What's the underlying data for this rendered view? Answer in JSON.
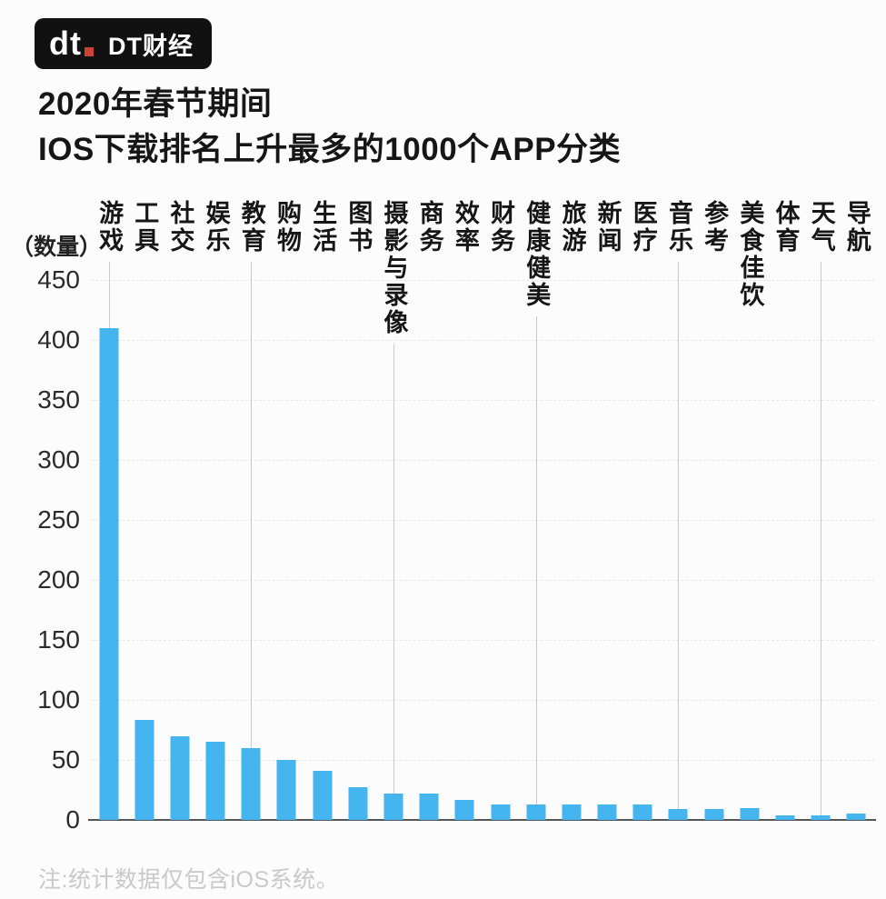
{
  "logo": {
    "mark": "dt",
    "text": "DT财经"
  },
  "title": {
    "line1": "2020年春节期间",
    "line2": "IOS下载排名上升最多的1000个APP分类"
  },
  "footer": {
    "note": "注:统计数据仅包含iOS系统。"
  },
  "colors": {
    "bar": "#45B5F0",
    "logo_bg": "#111111",
    "logo_dot_red": "#CE4338",
    "baseline": "#565656",
    "vertical_gridline": "#c9c9c9",
    "horizontal_gridline": "#e8e8e8",
    "footnote_gray": "#c9c9c9"
  },
  "chart_data": {
    "type": "bar",
    "title": "2020年春节期间IOS下载排名上升最多的1000个APP分类",
    "unit_label": "（数量）",
    "xlabel": "",
    "ylabel": "数量",
    "categories": [
      "游戏",
      "工具",
      "社交",
      "娱乐",
      "教育",
      "购物",
      "生活",
      "图书",
      "摄影与录像",
      "商务",
      "效率",
      "财务",
      "健康健美",
      "旅游",
      "新闻",
      "医疗",
      "音乐",
      "参考",
      "美食佳饮",
      "体育",
      "天气",
      "导航"
    ],
    "values": [
      410,
      83,
      70,
      65,
      60,
      50,
      41,
      27,
      22,
      22,
      17,
      13,
      13,
      13,
      13,
      13,
      9,
      9,
      10,
      4,
      4,
      5
    ],
    "ylim": [
      0,
      450
    ],
    "yticks": [
      0,
      50,
      100,
      150,
      200,
      250,
      300,
      350,
      400,
      450
    ],
    "grid": "faint dashed horizontal lines each 50; solid vertical lines at every 4th category",
    "vertical_gridline_category_indexes": [
      0,
      4,
      8,
      12,
      16,
      20
    ],
    "legend": "none",
    "bar_color": "#45B5F0"
  }
}
